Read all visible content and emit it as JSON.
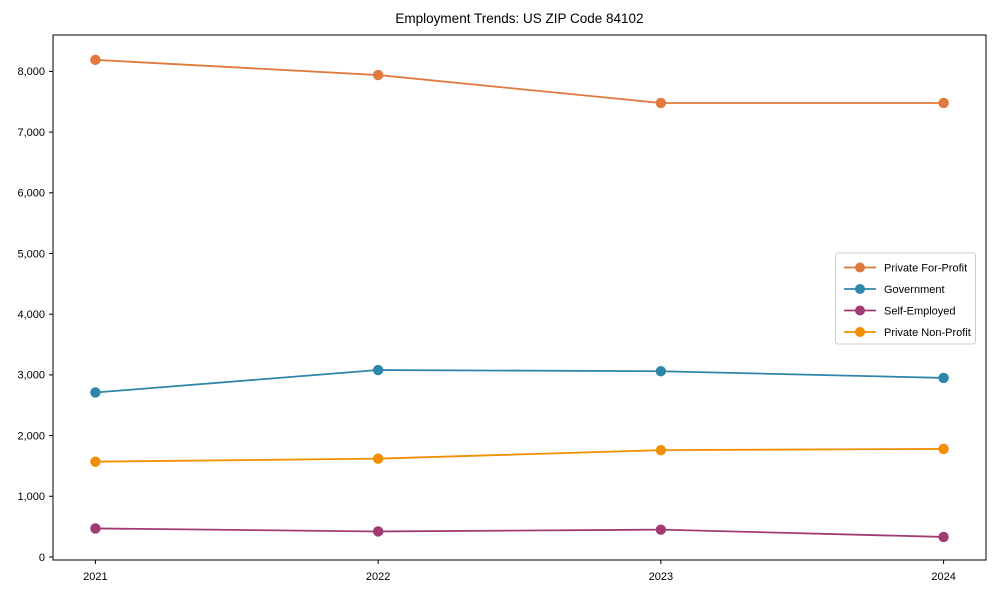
{
  "chart_data": {
    "type": "line",
    "title": "Employment Trends: US ZIP Code 84102",
    "xlabel": "",
    "ylabel": "",
    "x_labels": [
      "2021",
      "2022",
      "2023",
      "2024"
    ],
    "x_values": [
      2021,
      2022,
      2023,
      2024
    ],
    "series": [
      {
        "name": "Private For-Profit",
        "color": "#E0793C",
        "values": [
          8190,
          7940,
          7480,
          7480
        ]
      },
      {
        "name": "Government",
        "color": "#2E86AB",
        "values": [
          2710,
          3080,
          3060,
          2950
        ]
      },
      {
        "name": "Self-Employed",
        "color": "#A23B72",
        "values": [
          470,
          420,
          450,
          330
        ]
      },
      {
        "name": "Private Non-Profit",
        "color": "#F18F01",
        "values": [
          1570,
          1620,
          1760,
          1780
        ]
      }
    ],
    "yticks": [
      0,
      1000,
      2000,
      3000,
      4000,
      5000,
      6000,
      7000,
      8000
    ],
    "ytick_labels": [
      "0",
      "1,000",
      "2,000",
      "3,000",
      "4,000",
      "5,000",
      "6,000",
      "7,000",
      "8,000"
    ],
    "ylim": [
      -50,
      8600
    ],
    "xlim": [
      2020.85,
      2024.15
    ],
    "grid": false,
    "legend_position": "center right",
    "marker": "circle",
    "axis_color": "#000000",
    "legend_border_color": "#cccccc",
    "background_color": "#ffffff"
  }
}
